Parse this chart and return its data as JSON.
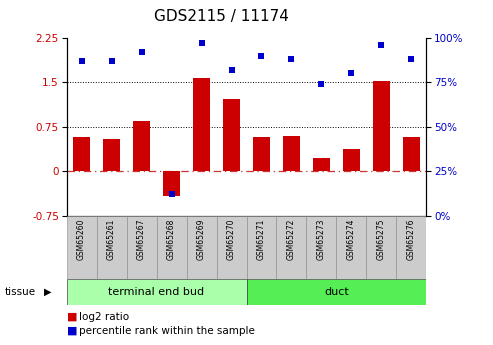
{
  "title": "GDS2115 / 11174",
  "samples": [
    "GSM65260",
    "GSM65261",
    "GSM65267",
    "GSM65268",
    "GSM65269",
    "GSM65270",
    "GSM65271",
    "GSM65272",
    "GSM65273",
    "GSM65274",
    "GSM65275",
    "GSM65276"
  ],
  "log2_ratio": [
    0.58,
    0.55,
    0.85,
    -0.42,
    1.58,
    1.22,
    0.58,
    0.6,
    0.22,
    0.38,
    1.52,
    0.58
  ],
  "percentile_rank": [
    87,
    87,
    92,
    12,
    97,
    82,
    90,
    88,
    74,
    80,
    96,
    88
  ],
  "groups": [
    {
      "label": "terminal end bud",
      "start": 0,
      "end": 6,
      "color": "#aaffaa"
    },
    {
      "label": "duct",
      "start": 6,
      "end": 12,
      "color": "#55ee55"
    }
  ],
  "ylim_left": [
    -0.75,
    2.25
  ],
  "ylim_right": [
    0,
    100
  ],
  "yticks_left": [
    -0.75,
    0,
    0.75,
    1.5,
    2.25
  ],
  "yticks_right": [
    0,
    25,
    50,
    75,
    100
  ],
  "bar_color": "#cc0000",
  "dot_color": "#0000cc",
  "zero_line_color": "#cc3333",
  "tissue_label": "tissue",
  "legend_bar": "log2 ratio",
  "legend_dot": "percentile rank within the sample",
  "title_fontsize": 11,
  "tick_fontsize": 7.5,
  "sample_fontsize": 5.5,
  "group_fontsize": 8,
  "legend_fontsize": 7.5
}
